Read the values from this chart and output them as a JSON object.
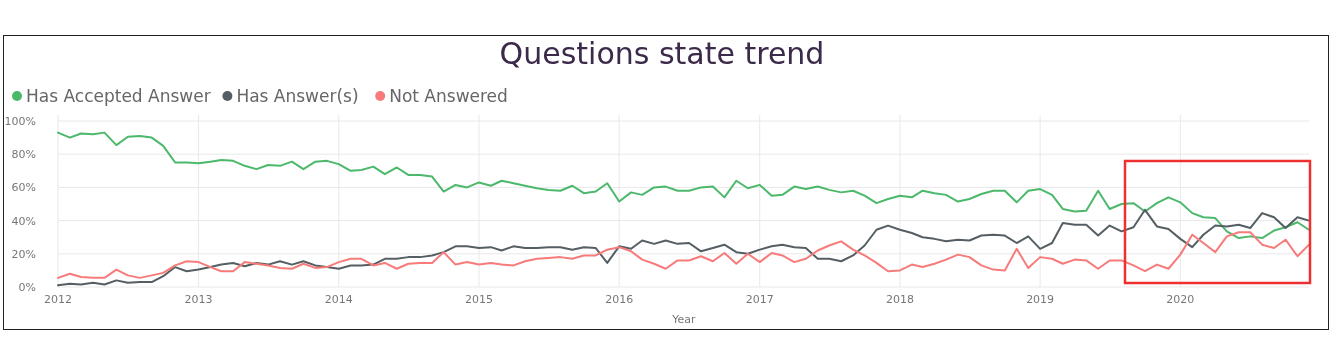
{
  "chart_data": {
    "type": "line",
    "title": "Questions state trend",
    "xlabel": "Year",
    "legend": "top left",
    "grid": true,
    "marker": "none",
    "line_style": "solid",
    "xlim": [
      "2012-01",
      "2020-12"
    ],
    "xticks": [
      {
        "value": "2012-01",
        "label": "2012"
      },
      {
        "value": "2013-01",
        "label": "2013"
      },
      {
        "value": "2014-01",
        "label": "2014"
      },
      {
        "value": "2015-01",
        "label": "2015"
      },
      {
        "value": "2016-01",
        "label": "2016"
      },
      {
        "value": "2017-01",
        "label": "2017"
      },
      {
        "value": "2018-01",
        "label": "2018"
      },
      {
        "value": "2019-01",
        "label": "2019"
      },
      {
        "value": "2020-01",
        "label": "2020"
      }
    ],
    "ylim": [
      0,
      100
    ],
    "yticks": [
      {
        "value": 0,
        "label": "0%"
      },
      {
        "value": 20,
        "label": "20%"
      },
      {
        "value": 40,
        "label": "40%"
      },
      {
        "value": 60,
        "label": "60%"
      },
      {
        "value": 80,
        "label": "80%"
      },
      {
        "value": 100,
        "label": "100%"
      }
    ],
    "x": [
      "2012-01",
      "2012-02",
      "2012-03",
      "2012-04",
      "2012-05",
      "2012-06",
      "2012-07",
      "2012-08",
      "2012-09",
      "2012-10",
      "2012-11",
      "2012-12",
      "2013-01",
      "2013-02",
      "2013-03",
      "2013-04",
      "2013-05",
      "2013-06",
      "2013-07",
      "2013-08",
      "2013-09",
      "2013-10",
      "2013-11",
      "2013-12",
      "2014-01",
      "2014-02",
      "2014-03",
      "2014-04",
      "2014-05",
      "2014-06",
      "2014-07",
      "2014-08",
      "2014-09",
      "2014-10",
      "2014-11",
      "2014-12",
      "2015-01",
      "2015-02",
      "2015-03",
      "2015-04",
      "2015-05",
      "2015-06",
      "2015-07",
      "2015-08",
      "2015-09",
      "2015-10",
      "2015-11",
      "2015-12",
      "2016-01",
      "2016-02",
      "2016-03",
      "2016-04",
      "2016-05",
      "2016-06",
      "2016-07",
      "2016-08",
      "2016-09",
      "2016-10",
      "2016-11",
      "2016-12",
      "2017-01",
      "2017-02",
      "2017-03",
      "2017-04",
      "2017-05",
      "2017-06",
      "2017-07",
      "2017-08",
      "2017-09",
      "2017-10",
      "2017-11",
      "2017-12",
      "2018-01",
      "2018-02",
      "2018-03",
      "2018-04",
      "2018-05",
      "2018-06",
      "2018-07",
      "2018-08",
      "2018-09",
      "2018-10",
      "2018-11",
      "2018-12",
      "2019-01",
      "2019-02",
      "2019-03",
      "2019-04",
      "2019-05",
      "2019-06",
      "2019-07",
      "2019-08",
      "2019-09",
      "2019-10",
      "2019-11",
      "2019-12",
      "2020-01",
      "2020-02",
      "2020-03",
      "2020-04",
      "2020-05",
      "2020-06",
      "2020-07",
      "2020-08",
      "2020-09",
      "2020-10",
      "2020-11",
      "2020-12"
    ],
    "series": [
      {
        "name": "Has Accepted Answer",
        "color": "#4cb86b",
        "values": [
          93,
          90,
          92.5,
          92,
          93,
          85.5,
          90.5,
          91,
          90,
          85,
          75,
          75,
          74.5,
          75.5,
          76.5,
          76,
          73,
          71,
          73.5,
          73,
          75.5,
          71,
          75.5,
          76,
          74,
          70,
          70.5,
          72.5,
          68,
          72,
          67.5,
          67.5,
          66.5,
          57.5,
          61.5,
          60,
          63,
          61,
          64,
          62.5,
          61,
          59.5,
          58.5,
          58,
          61,
          56.5,
          57.5,
          62.5,
          51.5,
          57,
          55.5,
          60,
          60.5,
          58,
          58,
          60,
          60.5,
          54,
          64,
          59.5,
          61.5,
          55,
          55.5,
          60.5,
          59,
          60.5,
          58.5,
          57,
          58,
          55,
          50.5,
          53,
          55,
          54,
          58,
          56.5,
          55.5,
          51.5,
          53,
          56,
          58,
          58,
          51,
          58,
          59,
          55.5,
          47,
          45.5,
          46,
          58,
          47,
          50,
          50.5,
          45.5,
          50.5,
          54,
          51,
          44.5,
          42,
          41.5,
          33.5,
          29.5,
          30.5,
          29.5,
          34,
          36,
          39,
          34.5
        ]
      },
      {
        "name": "Has Answer(s)",
        "color": "#555e63",
        "values": [
          1,
          2,
          1.5,
          2.5,
          1.5,
          4,
          2.5,
          3,
          3,
          6.5,
          12,
          9.5,
          10.5,
          12,
          13.5,
          14.5,
          12.5,
          14.5,
          13.5,
          15.5,
          13.5,
          15.5,
          13,
          12,
          11,
          13,
          13,
          13.5,
          17,
          17,
          18,
          18,
          19,
          21,
          24.5,
          24.5,
          23.5,
          24,
          22,
          24.5,
          23.5,
          23.5,
          24,
          24,
          22.5,
          24,
          23.5,
          14.5,
          24.5,
          23,
          28,
          26,
          28,
          26,
          26.5,
          21.5,
          23.5,
          25.5,
          21,
          20,
          22.5,
          24.5,
          25.5,
          24,
          23.5,
          17,
          17,
          15.5,
          19,
          25,
          34.5,
          37,
          34.5,
          32.5,
          30,
          29,
          27.5,
          28.5,
          28,
          31,
          31.5,
          31,
          26.5,
          30.5,
          23,
          26.5,
          38.5,
          37.5,
          37.5,
          31,
          37,
          33.5,
          36,
          46.5,
          36.5,
          35,
          29,
          24,
          31.5,
          37,
          36.5,
          37.5,
          35.5,
          44.5,
          42,
          35.5,
          42,
          40
        ]
      },
      {
        "name": "Not Answered",
        "color": "#f77b7b",
        "values": [
          5.5,
          8,
          6,
          5.5,
          5.5,
          10.5,
          7,
          5.5,
          7,
          8.5,
          13,
          15.5,
          15,
          12,
          9.5,
          9.5,
          15,
          14,
          13,
          11.5,
          11,
          14,
          11.5,
          12,
          15,
          17,
          17,
          13,
          14.5,
          11,
          14,
          14.5,
          14.5,
          21,
          13.5,
          15,
          13.5,
          14.5,
          13.5,
          13,
          15.5,
          17,
          17.5,
          18,
          17,
          19,
          19,
          22.5,
          24,
          21.5,
          16.5,
          14,
          11,
          16,
          16,
          18.5,
          15.5,
          20.5,
          14,
          20,
          15,
          20.5,
          19,
          15,
          17,
          22,
          25,
          27.5,
          22.5,
          19,
          14.5,
          9.5,
          10,
          13.5,
          12,
          14,
          16.5,
          19.5,
          18,
          13,
          10.5,
          10,
          23,
          11.5,
          18,
          17,
          14,
          16.5,
          16,
          11,
          16,
          16,
          13,
          9.5,
          13.5,
          11,
          19.5,
          31.5,
          26.5,
          21,
          30.5,
          33,
          33,
          25.5,
          23.5,
          28.5,
          18.5,
          25.5
        ]
      }
    ]
  }
}
